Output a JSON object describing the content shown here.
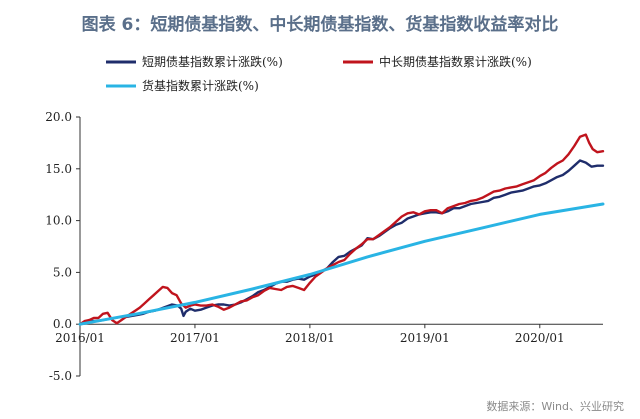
{
  "page": {
    "title": "图表 6：短期债基指数、中长期债基指数、货基指数收益率对比",
    "source": "数据来源：Wind、兴业研究"
  },
  "chart_data": {
    "type": "line",
    "x_ticks": [
      "2016/01",
      "2017/01",
      "2018/01",
      "2019/01",
      "2020/01"
    ],
    "y_ticks": [
      "20.0",
      "15.0",
      "10.0",
      "5.0",
      "0.0",
      "-5.0"
    ],
    "ylim": [
      -5,
      20
    ],
    "xlim": [
      2016.0,
      2020.55
    ],
    "legend_position": "top-left",
    "grid": false,
    "series": [
      {
        "name": "短期债基指数累计涨跌(%)",
        "color": "#1f2d6b",
        "points": [
          [
            2016.0,
            0.0
          ],
          [
            2016.05,
            0.1
          ],
          [
            2016.1,
            0.3
          ],
          [
            2016.15,
            0.3
          ],
          [
            2016.2,
            0.4
          ],
          [
            2016.25,
            0.5
          ],
          [
            2016.3,
            0.6
          ],
          [
            2016.35,
            0.7
          ],
          [
            2016.4,
            0.7
          ],
          [
            2016.45,
            0.8
          ],
          [
            2016.5,
            0.9
          ],
          [
            2016.55,
            1.0
          ],
          [
            2016.6,
            1.2
          ],
          [
            2016.65,
            1.3
          ],
          [
            2016.7,
            1.5
          ],
          [
            2016.75,
            1.7
          ],
          [
            2016.8,
            1.9
          ],
          [
            2016.85,
            1.8
          ],
          [
            2016.88,
            1.5
          ],
          [
            2016.9,
            0.8
          ],
          [
            2016.92,
            1.2
          ],
          [
            2016.96,
            1.5
          ],
          [
            2017.0,
            1.3
          ],
          [
            2017.05,
            1.4
          ],
          [
            2017.1,
            1.6
          ],
          [
            2017.15,
            1.8
          ],
          [
            2017.2,
            1.9
          ],
          [
            2017.25,
            1.9
          ],
          [
            2017.3,
            1.8
          ],
          [
            2017.35,
            1.9
          ],
          [
            2017.4,
            2.1
          ],
          [
            2017.45,
            2.4
          ],
          [
            2017.5,
            2.7
          ],
          [
            2017.55,
            3.1
          ],
          [
            2017.6,
            3.3
          ],
          [
            2017.65,
            3.6
          ],
          [
            2017.7,
            3.9
          ],
          [
            2017.75,
            4.1
          ],
          [
            2017.8,
            4.1
          ],
          [
            2017.85,
            4.3
          ],
          [
            2017.9,
            4.4
          ],
          [
            2017.95,
            4.3
          ],
          [
            2018.0,
            4.6
          ],
          [
            2018.05,
            4.8
          ],
          [
            2018.1,
            5.1
          ],
          [
            2018.15,
            5.4
          ],
          [
            2018.2,
            6.0
          ],
          [
            2018.25,
            6.5
          ],
          [
            2018.3,
            6.6
          ],
          [
            2018.35,
            7.0
          ],
          [
            2018.4,
            7.3
          ],
          [
            2018.45,
            7.6
          ],
          [
            2018.5,
            8.3
          ],
          [
            2018.55,
            8.2
          ],
          [
            2018.6,
            8.5
          ],
          [
            2018.65,
            8.9
          ],
          [
            2018.7,
            9.3
          ],
          [
            2018.75,
            9.6
          ],
          [
            2018.8,
            9.8
          ],
          [
            2018.85,
            10.2
          ],
          [
            2018.9,
            10.4
          ],
          [
            2018.95,
            10.6
          ],
          [
            2019.0,
            10.7
          ],
          [
            2019.05,
            10.8
          ],
          [
            2019.1,
            10.8
          ],
          [
            2019.15,
            10.7
          ],
          [
            2019.2,
            10.9
          ],
          [
            2019.25,
            11.2
          ],
          [
            2019.3,
            11.2
          ],
          [
            2019.35,
            11.4
          ],
          [
            2019.4,
            11.6
          ],
          [
            2019.45,
            11.7
          ],
          [
            2019.5,
            11.8
          ],
          [
            2019.55,
            11.9
          ],
          [
            2019.6,
            12.2
          ],
          [
            2019.65,
            12.3
          ],
          [
            2019.7,
            12.5
          ],
          [
            2019.75,
            12.7
          ],
          [
            2019.8,
            12.8
          ],
          [
            2019.85,
            12.9
          ],
          [
            2019.9,
            13.1
          ],
          [
            2019.95,
            13.3
          ],
          [
            2020.0,
            13.4
          ],
          [
            2020.05,
            13.6
          ],
          [
            2020.1,
            13.9
          ],
          [
            2020.15,
            14.2
          ],
          [
            2020.2,
            14.4
          ],
          [
            2020.25,
            14.8
          ],
          [
            2020.3,
            15.3
          ],
          [
            2020.35,
            15.8
          ],
          [
            2020.4,
            15.6
          ],
          [
            2020.45,
            15.2
          ],
          [
            2020.5,
            15.3
          ],
          [
            2020.55,
            15.3
          ]
        ]
      },
      {
        "name": "中长期债基指数累计涨跌(%)",
        "color": "#c0141d",
        "points": [
          [
            2016.0,
            0.0
          ],
          [
            2016.04,
            0.3
          ],
          [
            2016.08,
            0.4
          ],
          [
            2016.12,
            0.6
          ],
          [
            2016.16,
            0.6
          ],
          [
            2016.2,
            1.0
          ],
          [
            2016.24,
            1.1
          ],
          [
            2016.28,
            0.4
          ],
          [
            2016.32,
            0.1
          ],
          [
            2016.36,
            0.4
          ],
          [
            2016.4,
            0.7
          ],
          [
            2016.44,
            1.0
          ],
          [
            2016.48,
            1.3
          ],
          [
            2016.52,
            1.6
          ],
          [
            2016.56,
            2.0
          ],
          [
            2016.6,
            2.4
          ],
          [
            2016.64,
            2.8
          ],
          [
            2016.68,
            3.2
          ],
          [
            2016.72,
            3.6
          ],
          [
            2016.76,
            3.5
          ],
          [
            2016.8,
            3.0
          ],
          [
            2016.84,
            2.8
          ],
          [
            2016.88,
            2.0
          ],
          [
            2016.92,
            1.6
          ],
          [
            2016.96,
            1.8
          ],
          [
            2017.0,
            1.9
          ],
          [
            2017.05,
            1.8
          ],
          [
            2017.1,
            1.8
          ],
          [
            2017.15,
            1.9
          ],
          [
            2017.2,
            1.7
          ],
          [
            2017.25,
            1.4
          ],
          [
            2017.3,
            1.6
          ],
          [
            2017.35,
            1.9
          ],
          [
            2017.4,
            2.2
          ],
          [
            2017.45,
            2.3
          ],
          [
            2017.5,
            2.6
          ],
          [
            2017.55,
            2.8
          ],
          [
            2017.6,
            3.2
          ],
          [
            2017.65,
            3.5
          ],
          [
            2017.7,
            3.4
          ],
          [
            2017.75,
            3.3
          ],
          [
            2017.8,
            3.6
          ],
          [
            2017.85,
            3.7
          ],
          [
            2017.9,
            3.5
          ],
          [
            2017.95,
            3.3
          ],
          [
            2018.0,
            4.0
          ],
          [
            2018.05,
            4.6
          ],
          [
            2018.1,
            5.0
          ],
          [
            2018.15,
            5.4
          ],
          [
            2018.2,
            5.7
          ],
          [
            2018.25,
            6.0
          ],
          [
            2018.3,
            6.2
          ],
          [
            2018.35,
            6.8
          ],
          [
            2018.4,
            7.3
          ],
          [
            2018.45,
            7.7
          ],
          [
            2018.5,
            8.2
          ],
          [
            2018.55,
            8.2
          ],
          [
            2018.6,
            8.6
          ],
          [
            2018.65,
            9.0
          ],
          [
            2018.7,
            9.4
          ],
          [
            2018.75,
            9.9
          ],
          [
            2018.8,
            10.4
          ],
          [
            2018.85,
            10.7
          ],
          [
            2018.9,
            10.8
          ],
          [
            2018.95,
            10.6
          ],
          [
            2019.0,
            10.9
          ],
          [
            2019.05,
            11.0
          ],
          [
            2019.1,
            11.0
          ],
          [
            2019.15,
            10.7
          ],
          [
            2019.2,
            11.2
          ],
          [
            2019.25,
            11.4
          ],
          [
            2019.3,
            11.6
          ],
          [
            2019.35,
            11.7
          ],
          [
            2019.4,
            11.9
          ],
          [
            2019.45,
            12.0
          ],
          [
            2019.5,
            12.2
          ],
          [
            2019.55,
            12.5
          ],
          [
            2019.6,
            12.8
          ],
          [
            2019.65,
            12.9
          ],
          [
            2019.7,
            13.1
          ],
          [
            2019.75,
            13.2
          ],
          [
            2019.8,
            13.3
          ],
          [
            2019.85,
            13.5
          ],
          [
            2019.9,
            13.7
          ],
          [
            2019.95,
            13.9
          ],
          [
            2020.0,
            14.3
          ],
          [
            2020.05,
            14.6
          ],
          [
            2020.1,
            15.1
          ],
          [
            2020.15,
            15.5
          ],
          [
            2020.2,
            15.8
          ],
          [
            2020.25,
            16.4
          ],
          [
            2020.3,
            17.2
          ],
          [
            2020.35,
            18.1
          ],
          [
            2020.4,
            18.3
          ],
          [
            2020.43,
            17.5
          ],
          [
            2020.46,
            16.9
          ],
          [
            2020.5,
            16.6
          ],
          [
            2020.55,
            16.7
          ]
        ]
      },
      {
        "name": "货基指数累计涨跌(%)",
        "color": "#29b4e4",
        "points": [
          [
            2016.0,
            0.0
          ],
          [
            2016.5,
            1.0
          ],
          [
            2017.0,
            2.1
          ],
          [
            2017.5,
            3.4
          ],
          [
            2018.0,
            4.8
          ],
          [
            2018.5,
            6.5
          ],
          [
            2019.0,
            8.0
          ],
          [
            2019.5,
            9.3
          ],
          [
            2020.0,
            10.6
          ],
          [
            2020.55,
            11.6
          ]
        ]
      }
    ]
  }
}
